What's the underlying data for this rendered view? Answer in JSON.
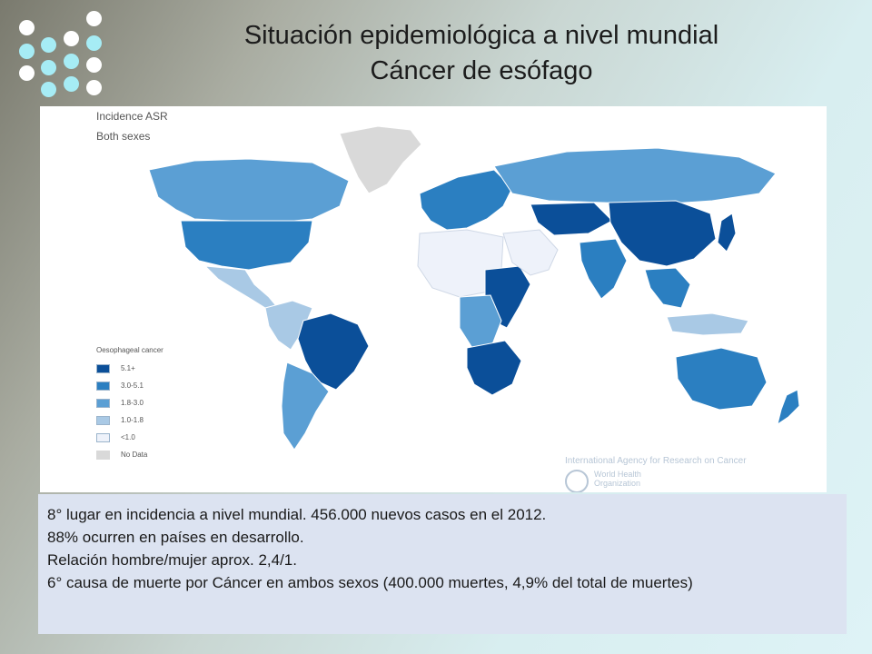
{
  "title": {
    "line1": "Situación epidemiológica a nivel  mundial",
    "line2": "Cáncer de esófago"
  },
  "map": {
    "heading1": "Incidence ASR",
    "heading2": "Both sexes",
    "legend_title": "Oesophageal cancer",
    "legend": [
      {
        "label": "5.1+",
        "color": "#0b4f99"
      },
      {
        "label": "3.0-5.1",
        "color": "#2b7fc1"
      },
      {
        "label": "1.8-3.0",
        "color": "#5b9fd4"
      },
      {
        "label": "1.0-1.8",
        "color": "#a9c9e5"
      },
      {
        "label": "<1.0",
        "color": "#eef2fa"
      },
      {
        "label": "No Data",
        "color": "#d9d9d9"
      }
    ],
    "credit": "International Agency for Research on Cancer",
    "who_line1": "World Health",
    "who_line2": "Organization"
  },
  "facts": [
    "8° lugar en incidencia a nivel mundial. 456.000 nuevos casos en el 2012.",
    "88% ocurren en países en desarrollo.",
    "Relación hombre/mujer aprox. 2,4/1.",
    "6° causa de muerte por Cáncer en ambos sexos (400.000 muertes, 4,9% del total de muertes)"
  ]
}
